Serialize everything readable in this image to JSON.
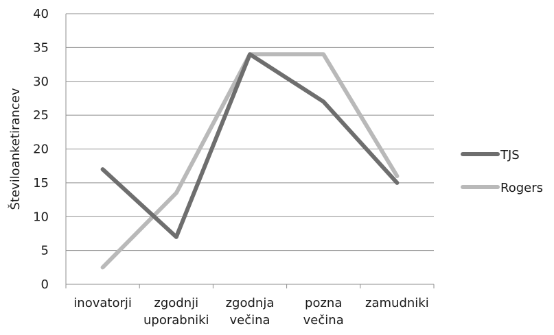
{
  "chart_data": {
    "type": "line",
    "title": "",
    "xlabel": "",
    "ylabel": "Številoanketirancev",
    "categories": [
      [
        "inovatorji"
      ],
      [
        "zgodnji",
        "uporabniki"
      ],
      [
        "zgodnja",
        "večina"
      ],
      [
        "pozna",
        "večina"
      ],
      [
        "zamudniki"
      ]
    ],
    "ylim": [
      0,
      40
    ],
    "yticks": [
      0,
      5,
      10,
      15,
      20,
      25,
      30,
      35,
      40
    ],
    "grid": true,
    "legend_position": "right",
    "series": [
      {
        "name": "TJS",
        "values": [
          17,
          7,
          34,
          27,
          15
        ],
        "color": "#6e6e6e"
      },
      {
        "name": "Rogers",
        "values": [
          2.5,
          13.5,
          34,
          34,
          16
        ],
        "color": "#b9b9b9"
      }
    ]
  }
}
